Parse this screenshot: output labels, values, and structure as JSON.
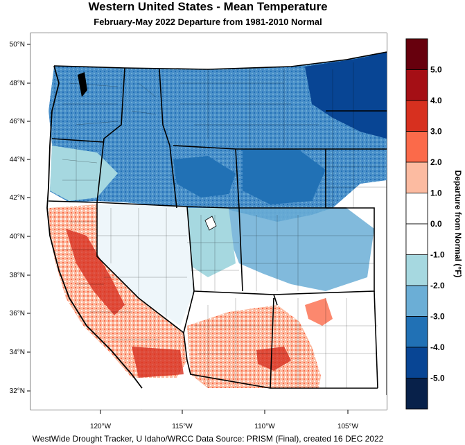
{
  "title": "Western United States - Mean Temperature",
  "subtitle": "February-May 2022  Departure from 1981-2010 Normal",
  "credit": "WestWide Drought Tracker, U Idaho/WRCC Data Source: PRISM (Final), created 16 DEC 2022",
  "lat_labels": [
    "50°N",
    "48°N",
    "46°N",
    "44°N",
    "42°N",
    "40°N",
    "38°N",
    "36°N",
    "34°N",
    "32°N"
  ],
  "lon_labels": [
    "120°W",
    "115°W",
    "110°W",
    "105°W"
  ],
  "colorbar": {
    "title": "Departure from Normal (°F)",
    "labels": [
      "5.0",
      "4.0",
      "3.0",
      "2.0",
      "1.0",
      "0.0",
      "-1.0",
      "-2.0",
      "-3.0",
      "-4.0",
      "-5.0"
    ],
    "colors": [
      "#67000d",
      "#a50f15",
      "#d7301f",
      "#fb6a4a",
      "#fcbba1",
      "#ffffff",
      "#ffffff",
      "#a6d8e0",
      "#6baed6",
      "#2171b5",
      "#084594",
      "#08214a"
    ]
  },
  "legend_colors": {
    "warm_strong": "#d7301f",
    "warm_mid": "#fb6a4a",
    "warm_light": "#fcbba1",
    "neutral": "#ffffff",
    "cool_light": "#a6d8e0",
    "cool_mid": "#6baed6",
    "cool_strong": "#2171b5",
    "cool_deep": "#084594"
  }
}
